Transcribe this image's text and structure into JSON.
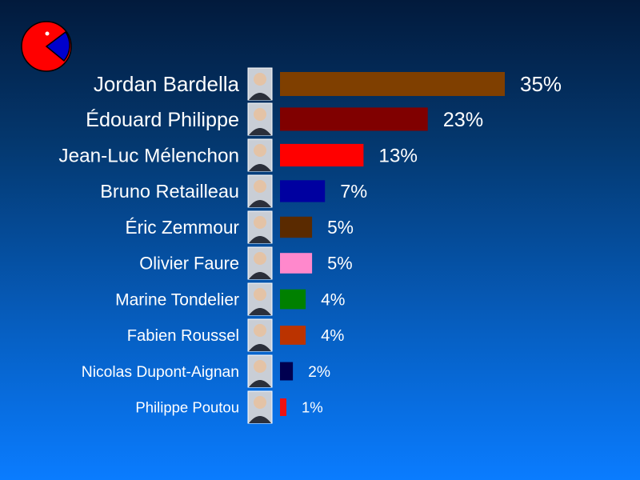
{
  "colors": {
    "logo_pie": "#ff0000",
    "logo_slice": "#0000cc",
    "logo_eye": "#ffffff"
  },
  "logo": {
    "icon": "pie-chart-icon"
  },
  "chart_data": {
    "type": "bar",
    "orientation": "horizontal",
    "grid": false,
    "categories": [
      "Jordan Bardella",
      "Édouard Philippe",
      "Jean-Luc Mélenchon",
      "Bruno Retailleau",
      "Éric Zemmour",
      "Olivier Faure",
      "Marine Tondelier",
      "Fabien Roussel",
      "Nicolas Dupont-Aignan",
      "Philippe Poutou"
    ],
    "values": [
      35,
      23,
      13,
      7,
      5,
      5,
      4,
      4,
      2,
      1
    ],
    "value_labels": [
      "35%",
      "23%",
      "13%",
      "7%",
      "5%",
      "5%",
      "4%",
      "4%",
      "2%",
      "1%"
    ],
    "bar_colors": [
      "#7f3f00",
      "#800000",
      "#ff0000",
      "#0000a0",
      "#5a2a00",
      "#ff88cc",
      "#008000",
      "#bb3300",
      "#000050",
      "#ee1111"
    ],
    "xlim": [
      0,
      35
    ],
    "unit": "%"
  }
}
